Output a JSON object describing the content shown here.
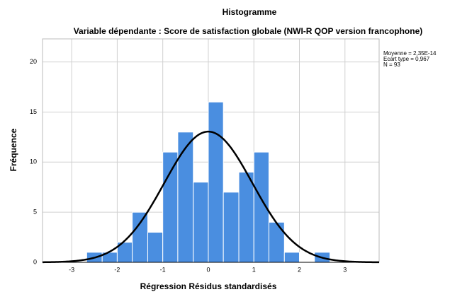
{
  "chart_data": {
    "type": "histogram",
    "title": "Histogramme",
    "subtitle": "Variable dépendante : Score de satisfaction globale (NWI-R QOP version francophone)",
    "x_label": "Régression Résidus standardisés",
    "y_label": "Fréquence",
    "bins": [
      -2.67,
      -2.33,
      -2,
      -1.67,
      -1.33,
      -1,
      -0.67,
      -0.33,
      0,
      0.33,
      0.67,
      1,
      1.33,
      1.67,
      2,
      2.33,
      2.67
    ],
    "values": [
      1,
      1,
      2,
      5,
      3,
      11,
      13,
      8,
      16,
      7,
      9,
      11,
      4,
      1,
      0,
      1
    ],
    "color": "#4a8ee0",
    "curve_color": "#000000",
    "stats": [
      {
        "label": "Moyenne = 2,35E-14",
        "value": 2.35e-14
      },
      {
        "label": "Ecart type = 0,967",
        "value": 0.967
      },
      {
        "label": "N = 93",
        "value": 93
      }
    ],
    "xlim": [
      -3.64,
      3.75
    ],
    "xticks": [
      -3,
      -2,
      -1,
      0,
      1,
      2,
      3
    ],
    "ylim": [
      0,
      22.3
    ],
    "yticks": [
      0,
      5,
      10,
      15,
      20
    ],
    "grid": true
  }
}
